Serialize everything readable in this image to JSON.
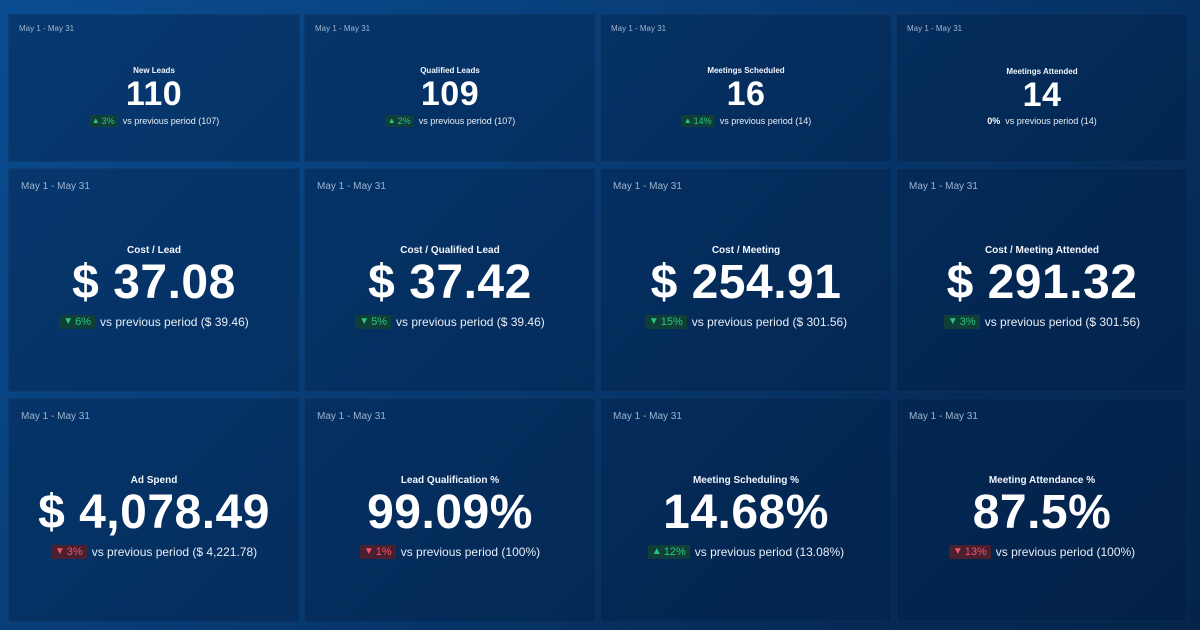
{
  "date_range": "May 1 - May 31",
  "colors": {
    "good": "#29c77a",
    "bad": "#f0566a",
    "background": "#073a73"
  },
  "tiles": [
    {
      "title": "New Leads",
      "value": "110",
      "arrow": "▲",
      "change": "3%",
      "status": "up",
      "comparison": "vs previous period (107)"
    },
    {
      "title": "Qualified Leads",
      "value": "109",
      "arrow": "▲",
      "change": "2%",
      "status": "up",
      "comparison": "vs previous period (107)"
    },
    {
      "title": "Meetings Scheduled",
      "value": "16",
      "arrow": "▲",
      "change": "14%",
      "status": "up",
      "comparison": "vs previous period (14)"
    },
    {
      "title": "Meetings Attended",
      "value": "14",
      "arrow": "",
      "change": "0%",
      "status": "flat",
      "comparison": "vs previous period (14)"
    },
    {
      "title": "Cost / Lead",
      "value": "$ 37.08",
      "arrow": "▼",
      "change": "6%",
      "status": "downgood",
      "comparison": "vs previous period ($ 39.46)"
    },
    {
      "title": "Cost / Qualified Lead",
      "value": "$ 37.42",
      "arrow": "▼",
      "change": "5%",
      "status": "downgood",
      "comparison": "vs previous period ($ 39.46)"
    },
    {
      "title": "Cost / Meeting",
      "value": "$ 254.91",
      "arrow": "▼",
      "change": "15%",
      "status": "downgood",
      "comparison": "vs previous period ($ 301.56)"
    },
    {
      "title": "Cost / Meeting Attended",
      "value": "$ 291.32",
      "arrow": "▼",
      "change": "3%",
      "status": "downgood",
      "comparison": "vs previous period ($ 301.56)"
    },
    {
      "title": "Ad Spend",
      "value": "$ 4,078.49",
      "arrow": "▼",
      "change": "3%",
      "status": "downbad",
      "comparison": "vs previous period ($ 4,221.78)"
    },
    {
      "title": "Lead Qualification %",
      "value": "99.09%",
      "arrow": "▼",
      "change": "1%",
      "status": "downbad",
      "comparison": "vs previous period (100%)"
    },
    {
      "title": "Meeting Scheduling %",
      "value": "14.68%",
      "arrow": "▲",
      "change": "12%",
      "status": "up",
      "comparison": "vs previous period (13.08%)"
    },
    {
      "title": "Meeting Attendance %",
      "value": "87.5%",
      "arrow": "▼",
      "change": "13%",
      "status": "downbad",
      "comparison": "vs previous period (100%)"
    }
  ]
}
